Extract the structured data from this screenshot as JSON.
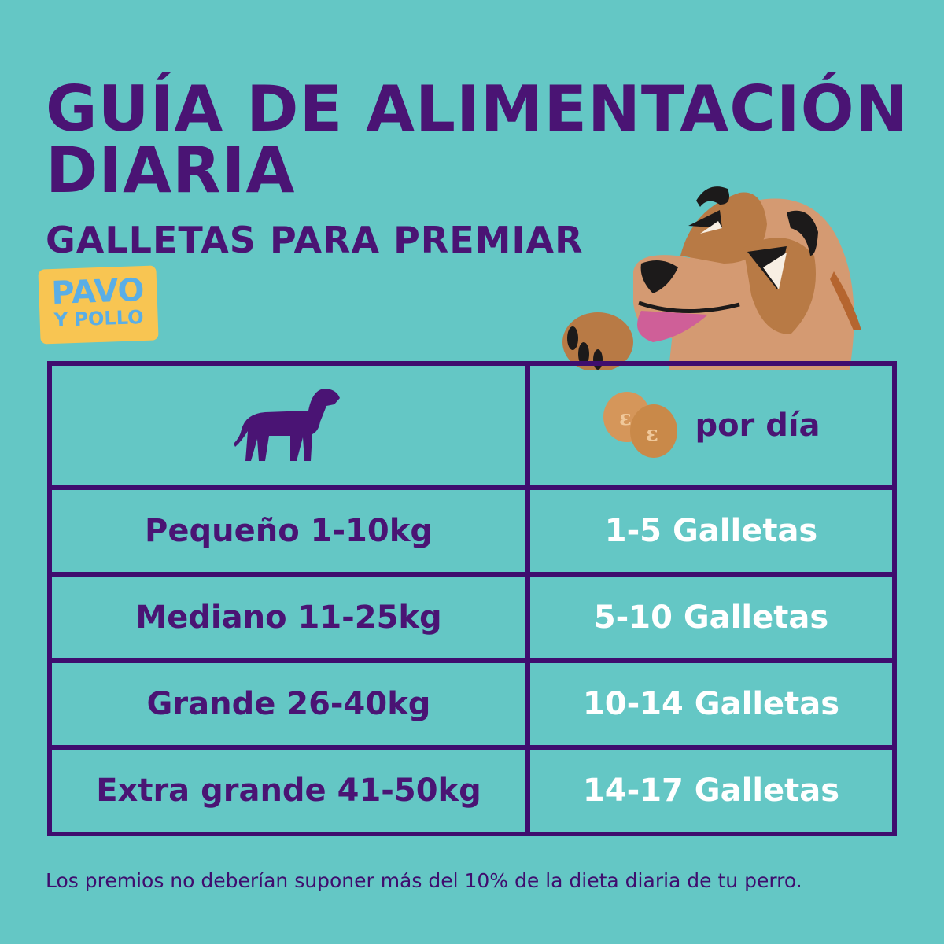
{
  "title": {
    "line1": "GUÍA DE ALIMENTACIÓN",
    "line2": "DIARIA"
  },
  "subtitle": "GALLETAS PARA PREMIAR",
  "badge": {
    "line1": "PAVO",
    "line2": "Y POLLO"
  },
  "table": {
    "header": {
      "left_icon": "dog-silhouette-icon",
      "right_icon": "biscuits-icon",
      "right_label": "por día"
    },
    "rows": [
      {
        "size": "Pequeño 1-10kg",
        "amount": "1-5 Galletas"
      },
      {
        "size": "Mediano 11-25kg",
        "amount": "5-10 Galletas"
      },
      {
        "size": "Grande 26-40kg",
        "amount": "10-14 Galletas"
      },
      {
        "size": "Extra grande 41-50kg",
        "amount": "14-17 Galletas"
      }
    ]
  },
  "footer": "Los premios no deberían suponer más del 10% de la dieta diaria de tu perro.",
  "colors": {
    "background": "#64c7c5",
    "purple": "#4a1474",
    "badge": "#f8c552",
    "badge_text": "#5aaee6"
  }
}
